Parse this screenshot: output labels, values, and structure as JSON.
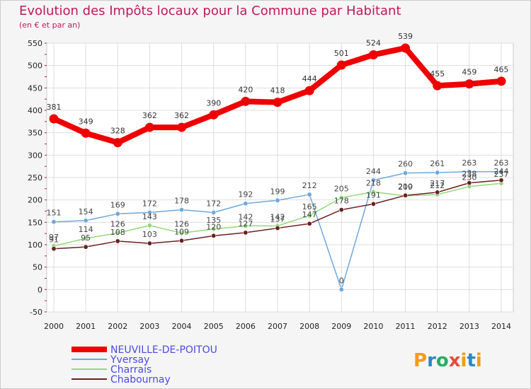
{
  "title": "Evolution des Impôts locaux pour la Commune par Habitant",
  "subtitle": "(en € et par an)",
  "brand": {
    "letters": [
      "P",
      "r",
      "o",
      "x",
      "i",
      "t",
      "i"
    ],
    "colors": [
      "#f39c12",
      "#2e86c1",
      "#27ae60",
      "#e74c3c",
      "#f39c12",
      "#2e86c1",
      "#f39c12"
    ]
  },
  "chart_data": {
    "type": "line",
    "title": "Evolution des Impôts locaux pour la Commune par Habitant",
    "subtitle": "(en € et par an)",
    "xlabel": "",
    "ylabel": "",
    "x": [
      "2000",
      "2001",
      "2002",
      "2003",
      "2004",
      "2005",
      "2006",
      "2007",
      "2008",
      "2009",
      "2010",
      "2011",
      "2012",
      "2013",
      "2014"
    ],
    "ylim": [
      -50,
      550
    ],
    "yticks": [
      "-50",
      "0",
      "50",
      "100",
      "150",
      "200",
      "250",
      "300",
      "350",
      "400",
      "450",
      "500",
      "550"
    ],
    "legend_position": "bottom-left",
    "series": [
      {
        "name": "NEUVILLE-DE-POITOU",
        "color": "#ee0000",
        "values": [
          381,
          349,
          328,
          362,
          362,
          390,
          420,
          418,
          444,
          501,
          524,
          539,
          455,
          459,
          465
        ],
        "labels": [
          "381",
          "349",
          "328",
          "362",
          "362",
          "390",
          "420",
          "418",
          "444",
          "501",
          "524",
          "539",
          "455",
          "459",
          "465"
        ]
      },
      {
        "name": "Yversay",
        "color": "#6fa8dc",
        "values": [
          151,
          154,
          169,
          172,
          178,
          172,
          192,
          199,
          212,
          0,
          244,
          260,
          261,
          263,
          263
        ],
        "labels": [
          "151",
          "154",
          "169",
          "172",
          "178",
          "172",
          "192",
          "199",
          "212",
          "0",
          "244",
          "260",
          "261",
          "263",
          "263"
        ]
      },
      {
        "name": "Charrais",
        "color": "#93d97a",
        "values": [
          97,
          114,
          126,
          143,
          126,
          135,
          142,
          142,
          165,
          205,
          218,
          209,
          212,
          230,
          237
        ],
        "labels": [
          "97",
          "114",
          "126",
          "143",
          "126",
          "135",
          "142",
          "142",
          "165",
          "205",
          "218",
          "209",
          "212",
          "230",
          "237"
        ]
      },
      {
        "name": "Chabournay",
        "color": "#6b1f1f",
        "values": [
          91,
          95,
          108,
          103,
          109,
          120,
          127,
          137,
          147,
          178,
          191,
          210,
          217,
          238,
          244
        ],
        "labels": [
          "91",
          "95",
          "108",
          "103",
          "109",
          "120",
          "127",
          "137",
          "147",
          "178",
          "191",
          "210",
          "217",
          "238",
          "244"
        ]
      }
    ]
  }
}
